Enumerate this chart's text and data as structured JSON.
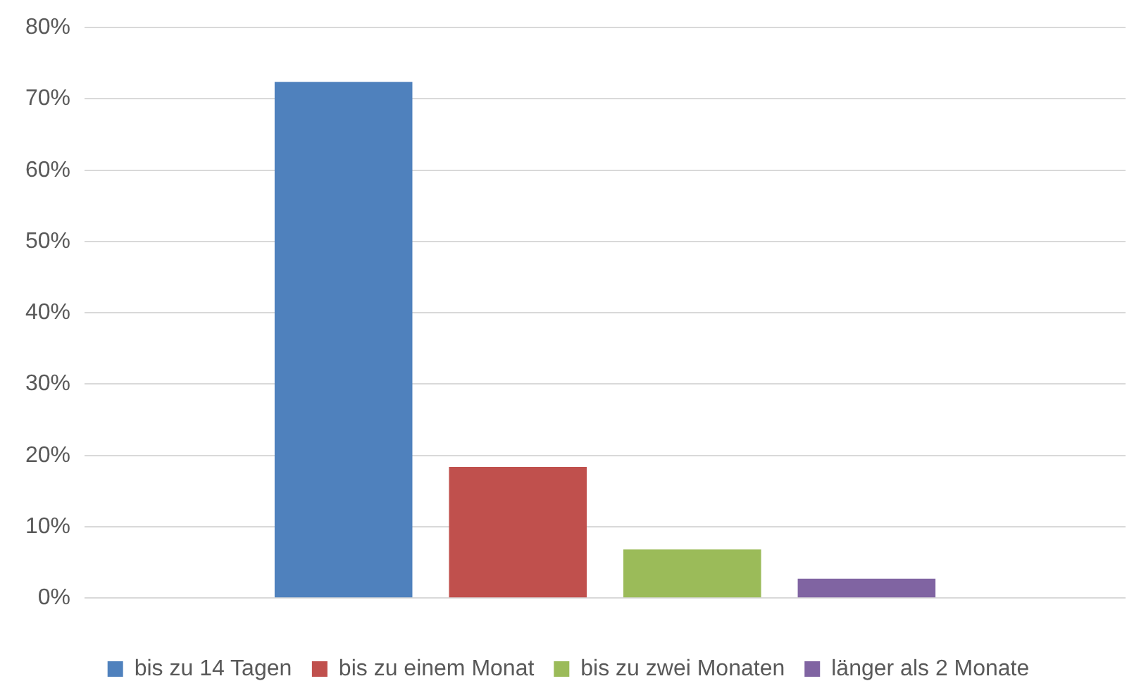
{
  "chart_data": {
    "type": "bar",
    "categories": [
      null
    ],
    "series": [
      {
        "name": "bis zu 14 Tagen",
        "color": "#4f81bd",
        "values": [
          72.4
        ]
      },
      {
        "name": "bis zu einem Monat",
        "color": "#c0504d",
        "values": [
          18.4
        ]
      },
      {
        "name": "bis zu zwei Monaten",
        "color": "#9bbb59",
        "values": [
          6.8
        ]
      },
      {
        "name": "länger als 2 Monate",
        "color": "#8064a2",
        "values": [
          2.7
        ]
      }
    ],
    "ylim": [
      0,
      80
    ],
    "yticks": [
      {
        "value": 0,
        "label": "0%"
      },
      {
        "value": 10,
        "label": "10%"
      },
      {
        "value": 20,
        "label": "20%"
      },
      {
        "value": 30,
        "label": "30%"
      },
      {
        "value": 40,
        "label": "40%"
      },
      {
        "value": 50,
        "label": "50%"
      },
      {
        "value": 60,
        "label": "60%"
      },
      {
        "value": 70,
        "label": "70%"
      },
      {
        "value": 80,
        "label": "80%"
      }
    ],
    "grid": "y",
    "legend": "bottom"
  }
}
